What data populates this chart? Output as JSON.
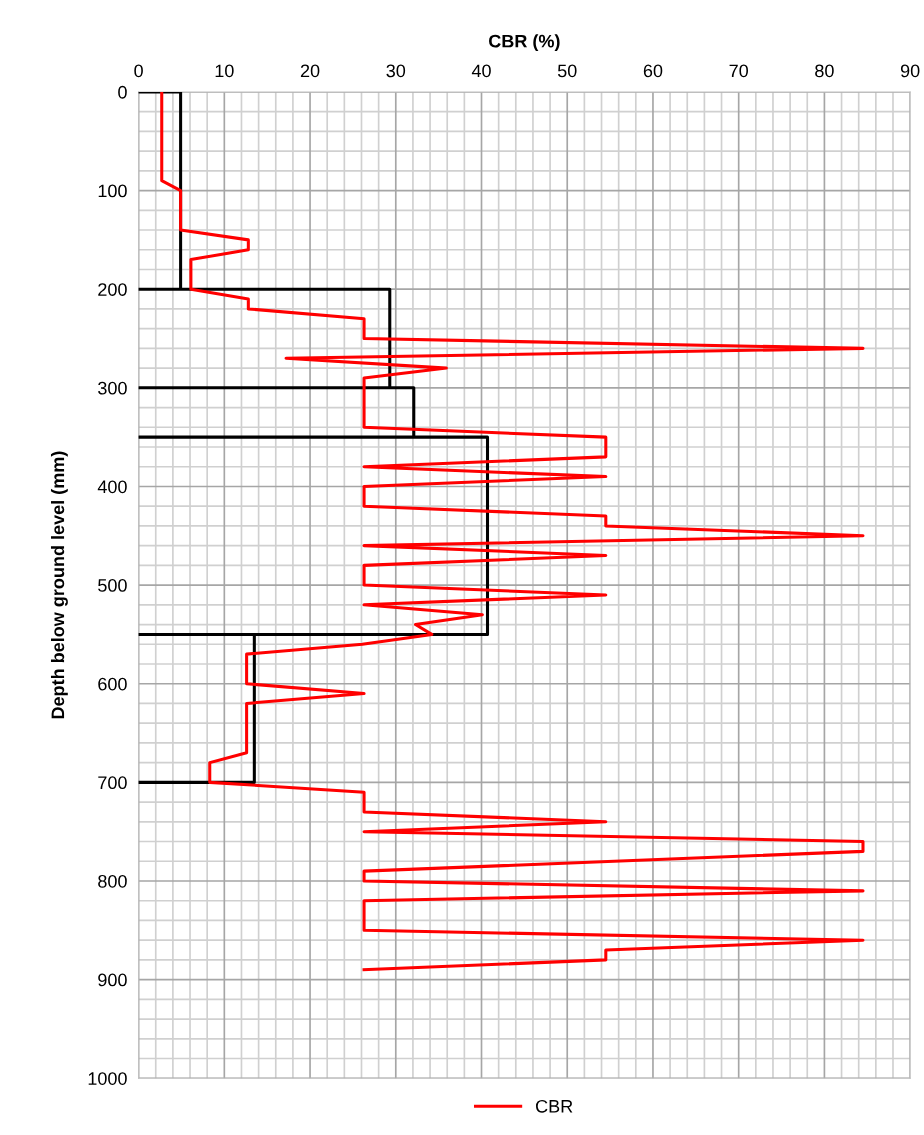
{
  "chart_data": {
    "type": "line",
    "xlabel": "CBR (%)",
    "ylabel": "Depth below ground level (mm)",
    "xlim": [
      0,
      90
    ],
    "xticks": [
      0,
      10,
      20,
      30,
      40,
      50,
      60,
      70,
      80,
      90
    ],
    "ylim": [
      1000,
      0
    ],
    "yticks": [
      0,
      100,
      200,
      300,
      400,
      500,
      600,
      700,
      800,
      900,
      1000
    ],
    "grid": true,
    "legend": "bottom",
    "marker": "none",
    "line_style": "solid",
    "series": [
      {
        "color": "#000000",
        "x": [
          0,
          4.9,
          4.9,
          0,
          29.3,
          29.3,
          0,
          32.1,
          32.1,
          0,
          40.7,
          40.7,
          0,
          13.5,
          13.5,
          0
        ],
        "values": [
          0,
          0,
          200,
          200,
          200,
          300,
          300,
          300,
          350,
          350,
          350,
          550,
          550,
          550,
          700,
          700
        ]
      },
      {
        "name": "CBR",
        "color": "#ff0000",
        "x": [
          2.7,
          2.7,
          4.9,
          4.9,
          12.8,
          12.8,
          6.1,
          6.1,
          12.8,
          12.8,
          26.3,
          26.3,
          84.5,
          17.2,
          35.9,
          26.3,
          26.3,
          54.5,
          54.5,
          26.3,
          54.5,
          26.3,
          26.3,
          54.5,
          54.5,
          84.5,
          26.3,
          54.5,
          26.3,
          26.3,
          54.5,
          26.3,
          40.1,
          32.3,
          34.2,
          26.1,
          12.6,
          12.6,
          26.3,
          12.6,
          12.6,
          8.3,
          8.3,
          26.3,
          26.3,
          54.5,
          26.3,
          84.5,
          84.5,
          26.3,
          26.3,
          84.5,
          26.3,
          26.3,
          84.5,
          54.5,
          54.5,
          26.3
        ],
        "values": [
          0,
          90,
          100,
          140,
          150,
          160,
          170,
          200,
          210,
          220,
          230,
          250,
          260,
          270,
          280,
          290,
          340,
          350,
          370,
          380,
          390,
          400,
          420,
          430,
          440,
          450,
          460,
          470,
          480,
          500,
          510,
          520,
          530,
          540,
          550,
          560,
          570,
          600,
          610,
          620,
          670,
          680,
          700,
          710,
          730,
          740,
          750,
          760,
          770,
          790,
          800,
          810,
          820,
          850,
          860,
          870,
          880,
          890
        ]
      }
    ]
  }
}
